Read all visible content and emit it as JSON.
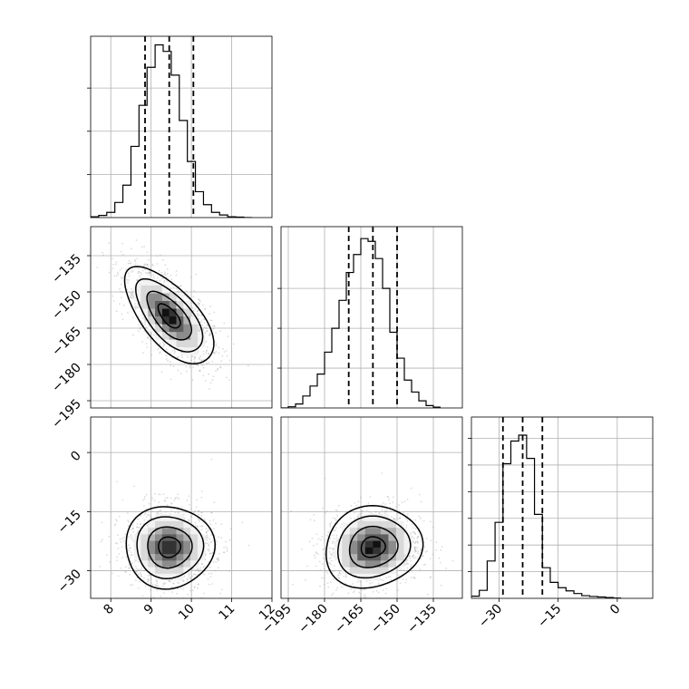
{
  "chart_data": {
    "type": "corner",
    "grid": true,
    "parameters": [
      {
        "range": [
          7.5,
          12.0
        ],
        "ticks": [
          8,
          9,
          10,
          11,
          12
        ],
        "quantiles": [
          8.85,
          9.45,
          10.05
        ]
      },
      {
        "range": [
          -198.0,
          -123.0
        ],
        "ticks": [
          -195,
          -180,
          -165,
          -150,
          -135
        ],
        "quantiles": [
          -170.0,
          -160.0,
          -150.0
        ]
      },
      {
        "range": [
          -37.0,
          9.0
        ],
        "ticks": [
          -30,
          -15,
          0
        ],
        "quantiles": [
          -29.0,
          -24.0,
          -19.0
        ]
      }
    ],
    "histograms": [
      {
        "parameter": 0,
        "bin_edges": [
          7.5,
          7.7,
          7.9,
          8.1,
          8.3,
          8.5,
          8.7,
          8.9,
          9.1,
          9.3,
          9.5,
          9.7,
          9.9,
          10.1,
          10.3,
          10.5,
          10.7,
          10.9,
          11.1,
          11.3,
          11.5
        ],
        "counts": [
          2,
          5,
          12,
          35,
          75,
          165,
          260,
          348,
          400,
          385,
          330,
          225,
          130,
          60,
          30,
          12,
          6,
          2,
          1,
          0
        ],
        "y_max": 420,
        "y_ticks": [
          100,
          200,
          300
        ]
      },
      {
        "parameter": 1,
        "bin_edges": [
          -198,
          -195,
          -192,
          -189,
          -186,
          -183,
          -180,
          -177,
          -174,
          -171,
          -168,
          -165,
          -162,
          -159,
          -156,
          -153,
          -150,
          -147,
          -144,
          -141,
          -138,
          -135,
          -132
        ],
        "counts": [
          0,
          3,
          10,
          30,
          55,
          85,
          140,
          200,
          270,
          340,
          385,
          425,
          418,
          375,
          300,
          190,
          125,
          70,
          40,
          18,
          6,
          2
        ],
        "y_max": 455,
        "y_ticks": [
          100,
          200,
          300
        ]
      },
      {
        "parameter": 2,
        "bin_edges": [
          -37,
          -35,
          -33,
          -31,
          -29,
          -27,
          -25,
          -23,
          -21,
          -19,
          -17,
          -15,
          -13,
          -11,
          -9,
          -7,
          -5,
          -3,
          -1,
          1
        ],
        "counts": [
          8,
          30,
          140,
          285,
          505,
          590,
          612,
          525,
          315,
          115,
          60,
          40,
          28,
          18,
          10,
          7,
          5,
          3,
          1
        ],
        "y_max": 680,
        "y_ticks": [
          100,
          200,
          300,
          400,
          500,
          600
        ]
      }
    ],
    "pairs": [
      {
        "x_parameter": 0,
        "y_parameter": 1,
        "mean": [
          9.45,
          -160.0
        ],
        "sd": [
          0.55,
          10.0
        ],
        "correlation": -0.65,
        "contour_levels": [
          0.5,
          1.0,
          1.5,
          2.0
        ]
      },
      {
        "x_parameter": 0,
        "y_parameter": 2,
        "mean": [
          9.45,
          -24.0
        ],
        "sd": [
          0.55,
          5.2
        ],
        "correlation": 0.0,
        "contour_levels": [
          0.5,
          1.0,
          1.5,
          2.0
        ]
      },
      {
        "x_parameter": 1,
        "y_parameter": 2,
        "mean": [
          -160.0,
          -24.0
        ],
        "sd": [
          10.0,
          5.2
        ],
        "correlation": 0.1,
        "contour_levels": [
          0.5,
          1.0,
          1.5,
          2.0
        ]
      }
    ]
  }
}
